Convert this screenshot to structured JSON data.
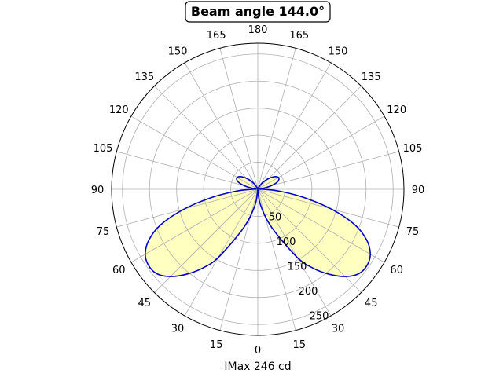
{
  "chart_data": {
    "type": "polar",
    "title": "Beam angle 144.0°",
    "xlabel": "IMax 246 cd",
    "angle_labels": [
      "0",
      "15",
      "30",
      "45",
      "60",
      "75",
      "90",
      "105",
      "120",
      "135",
      "150",
      "165",
      "180"
    ],
    "radial_labels": [
      "50",
      "100",
      "150",
      "200",
      "250"
    ],
    "radial_ticks": [
      50,
      100,
      150,
      200,
      250
    ],
    "rmax": 270,
    "grid": true,
    "series": [
      {
        "angles": [
          0,
          10,
          20,
          30,
          35,
          40,
          45,
          50,
          55,
          60,
          65,
          70,
          75,
          80,
          85,
          90,
          95,
          100,
          105,
          110,
          115,
          120,
          125,
          130,
          135,
          140,
          145,
          150,
          160,
          170,
          180
        ],
        "values": [
          0,
          30,
          75,
          145,
          178,
          205,
          228,
          243,
          246,
          240,
          222,
          190,
          140,
          85,
          40,
          10,
          3,
          12,
          26,
          38,
          43,
          44,
          41,
          35,
          28,
          21,
          14,
          8,
          2,
          0,
          0
        ],
        "line_color": "#0000cc",
        "fill_color": "#ffffc0"
      }
    ]
  }
}
